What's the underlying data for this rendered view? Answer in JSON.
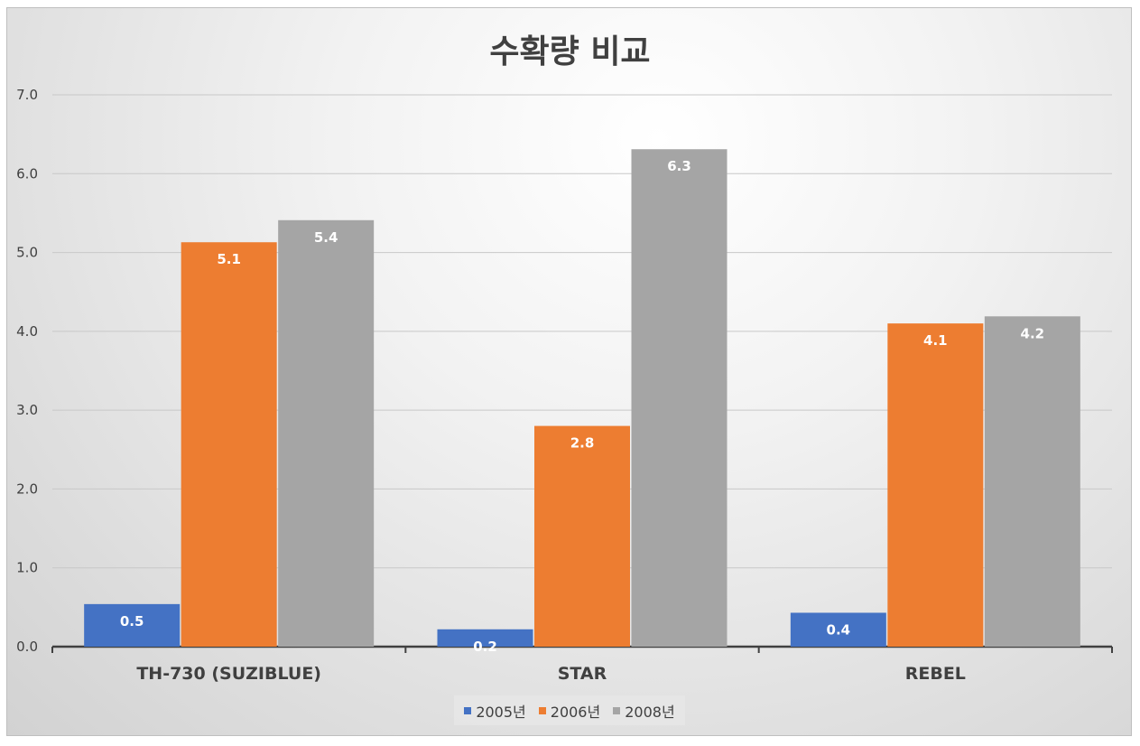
{
  "chart_data": {
    "type": "bar",
    "title": "수확량 비교",
    "categories": [
      "TH-730 (SUZIBLUE)",
      "STAR",
      "REBEL"
    ],
    "series": [
      {
        "name": "2005년",
        "values": [
          0.5,
          0.2,
          0.4
        ],
        "exact": [
          0.54,
          0.22,
          0.43
        ],
        "color": "#4472C4"
      },
      {
        "name": "2006년",
        "values": [
          5.1,
          2.8,
          4.1
        ],
        "exact": [
          5.13,
          2.8,
          4.1
        ],
        "color": "#ED7D31"
      },
      {
        "name": "2008년",
        "values": [
          5.4,
          6.3,
          4.2
        ],
        "exact": [
          5.41,
          6.31,
          4.19
        ],
        "color": "#A5A5A5"
      }
    ],
    "ylim": [
      0,
      7
    ],
    "yticks": [
      "0.0",
      "1.0",
      "2.0",
      "3.0",
      "4.0",
      "5.0",
      "6.0",
      "7.0"
    ],
    "xlabel": "",
    "ylabel": "",
    "grid": true,
    "legend_position": "bottom",
    "data_labels": true
  }
}
